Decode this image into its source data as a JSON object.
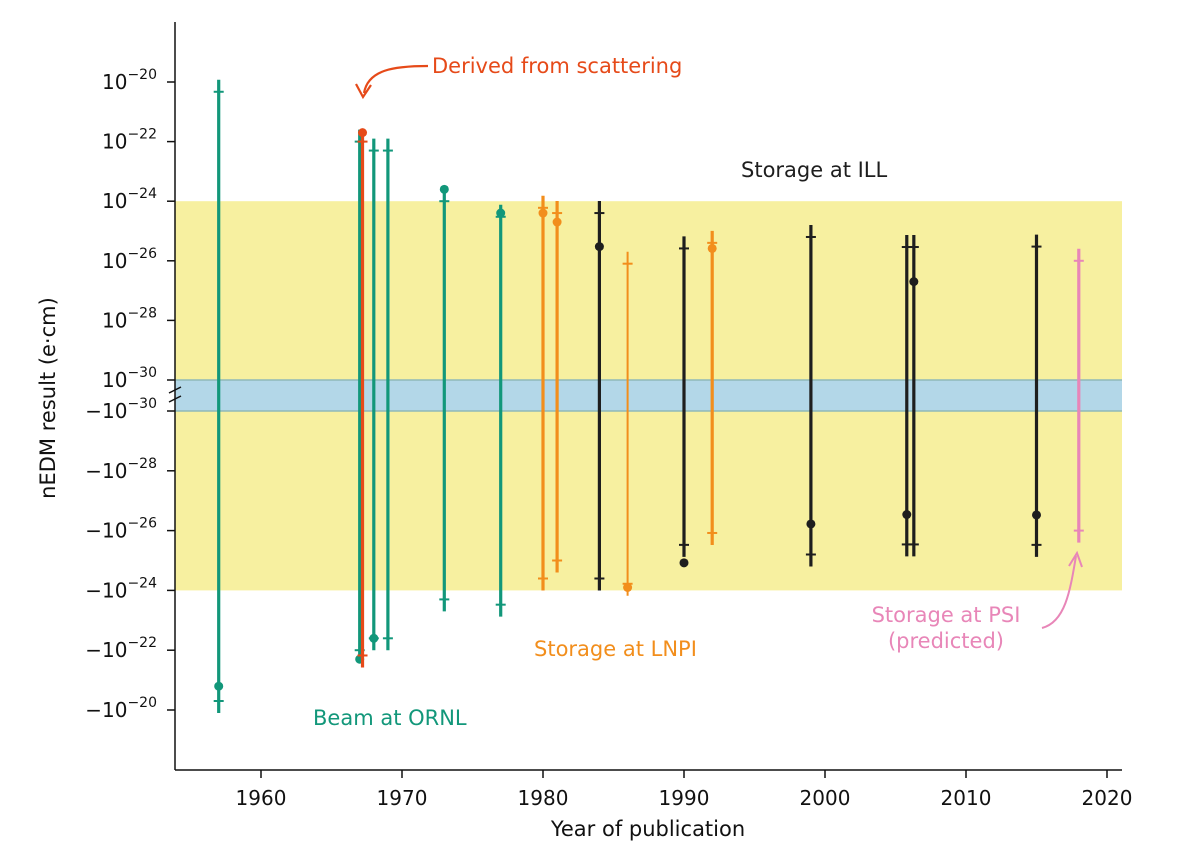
{
  "chart_data": {
    "type": "scatter",
    "xlabel": "Year of publication",
    "ylabel": "nEDM result (e·cm)",
    "xlim": [
      1954,
      2021
    ],
    "x_ticks": [
      1960,
      1970,
      1980,
      1990,
      2000,
      2010,
      2020
    ],
    "y_scale": "symmetric-log, positive half above the break, negative half below",
    "y_ticks": [
      {
        "sign": 1,
        "exp": -20,
        "label_base": "10",
        "label_exp": "−20"
      },
      {
        "sign": 1,
        "exp": -22,
        "label_base": "10",
        "label_exp": "−22"
      },
      {
        "sign": 1,
        "exp": -24,
        "label_base": "10",
        "label_exp": "−24"
      },
      {
        "sign": 1,
        "exp": -26,
        "label_base": "10",
        "label_exp": "−26"
      },
      {
        "sign": 1,
        "exp": -28,
        "label_base": "10",
        "label_exp": "−28"
      },
      {
        "sign": 1,
        "exp": -30,
        "label_base": "10",
        "label_exp": "−30"
      },
      {
        "sign": -1,
        "exp": -30,
        "label_base": "−10",
        "label_exp": "−30"
      },
      {
        "sign": -1,
        "exp": -28,
        "label_base": "−10",
        "label_exp": "−28"
      },
      {
        "sign": -1,
        "exp": -26,
        "label_base": "−10",
        "label_exp": "−26"
      },
      {
        "sign": -1,
        "exp": -24,
        "label_base": "−10",
        "label_exp": "−24"
      },
      {
        "sign": -1,
        "exp": -22,
        "label_base": "−10",
        "label_exp": "−22"
      },
      {
        "sign": -1,
        "exp": -20,
        "label_base": "−10",
        "label_exp": "−20"
      }
    ],
    "bands": [
      {
        "name": "yellow",
        "from": [
          1,
          -24
        ],
        "to": [
          -1,
          -24
        ],
        "color": "#f7f0a0"
      },
      {
        "name": "blue",
        "from": [
          1,
          -30
        ],
        "to": [
          -1,
          -30
        ],
        "color": "#b3d7e8"
      }
    ],
    "series": [
      {
        "name": "Beam at ORNL",
        "color": "#12977a",
        "points": [
          {
            "x": 1957,
            "y": "-1.6e-21",
            "err_top": 4.7e-21,
            "err_bottom": -5e-21
          },
          {
            "x": 1967,
            "y": "-2.0e-22",
            "err_top": 1e-22,
            "err_bottom": -1e-22
          },
          {
            "x": 1968,
            "y": "-4.0e-23",
            "err_top": 5e-23,
            "err_bottom": -4e-23
          },
          {
            "x": 1969,
            "y": null,
            "err_top": 5e-23,
            "err_bottom": -4e-23
          },
          {
            "x": 1973,
            "y": "2.5e-24",
            "err_top": 1e-24,
            "err_bottom": -2e-24
          },
          {
            "x": 1977,
            "y": "4.0e-25",
            "err_top": 3e-25,
            "err_bottom": -3e-24
          }
        ]
      },
      {
        "name": "Derived from scattering",
        "color": "#e64a19",
        "points": [
          {
            "x": 1967.2,
            "y": "2.0e-22",
            "err_top": 1e-22,
            "err_bottom": -1.5e-22
          }
        ]
      },
      {
        "name": "Storage at LNPI",
        "color": "#f28e1c",
        "points": [
          {
            "x": 1980,
            "y": "4.0e-25",
            "err_top": 6e-25,
            "err_bottom": -4e-25
          },
          {
            "x": 1981,
            "y": "2.0e-25",
            "err_top": 4e-25,
            "err_bottom": -1e-25
          },
          {
            "x": 1986,
            "y": "-8.0e-25",
            "err_top": 8e-27,
            "err_bottom": -6e-25
          },
          {
            "x": 1992,
            "y": "2.6e-26",
            "err_top": 4e-26,
            "err_bottom": -1.2e-26
          }
        ]
      },
      {
        "name": "Storage at ILL",
        "color": "#1e1e1e",
        "points": [
          {
            "x": 1984,
            "y": "3.0e-26",
            "err_top": 4e-25,
            "err_bottom": -4e-25
          },
          {
            "x": 1990,
            "y": "-1.2e-25",
            "err_top": 2.6e-26,
            "err_bottom": -3e-26
          },
          {
            "x": 1999,
            "y": "-6.0e-27",
            "err_top": 6.3e-26,
            "err_bottom": -6.3e-26
          },
          {
            "x": 2005.8,
            "y": "-2.9e-27",
            "err_top": 2.9e-26,
            "err_bottom": -2.9e-26
          },
          {
            "x": 2006.3,
            "y": "2.0e-27",
            "err_top": 2.9e-26,
            "err_bottom": -2.9e-26
          },
          {
            "x": 2015,
            "y": "-3.0e-27",
            "err_top": 3e-26,
            "err_bottom": -3e-26
          }
        ]
      },
      {
        "name": "Storage at PSI (predicted)",
        "color": "#e886b8",
        "points": [
          {
            "x": 2018,
            "y": null,
            "err_top": 1e-26,
            "err_bottom": -1e-26
          }
        ]
      }
    ]
  },
  "annotations": {
    "scattering": "Derived from scattering",
    "ill": "Storage at ILL",
    "lnpi": "Storage at LNPI",
    "ornl": "Beam at ORNL",
    "psi_line1": "Storage at PSI",
    "psi_line2": "(predicted)"
  },
  "colors": {
    "ornl": "#12977a",
    "scattering": "#e64a19",
    "lnpi": "#f28e1c",
    "ill": "#1e1e1e",
    "psi": "#e886b8",
    "yellow_band": "#f7f0a0",
    "blue_band": "#b3d7e8"
  }
}
